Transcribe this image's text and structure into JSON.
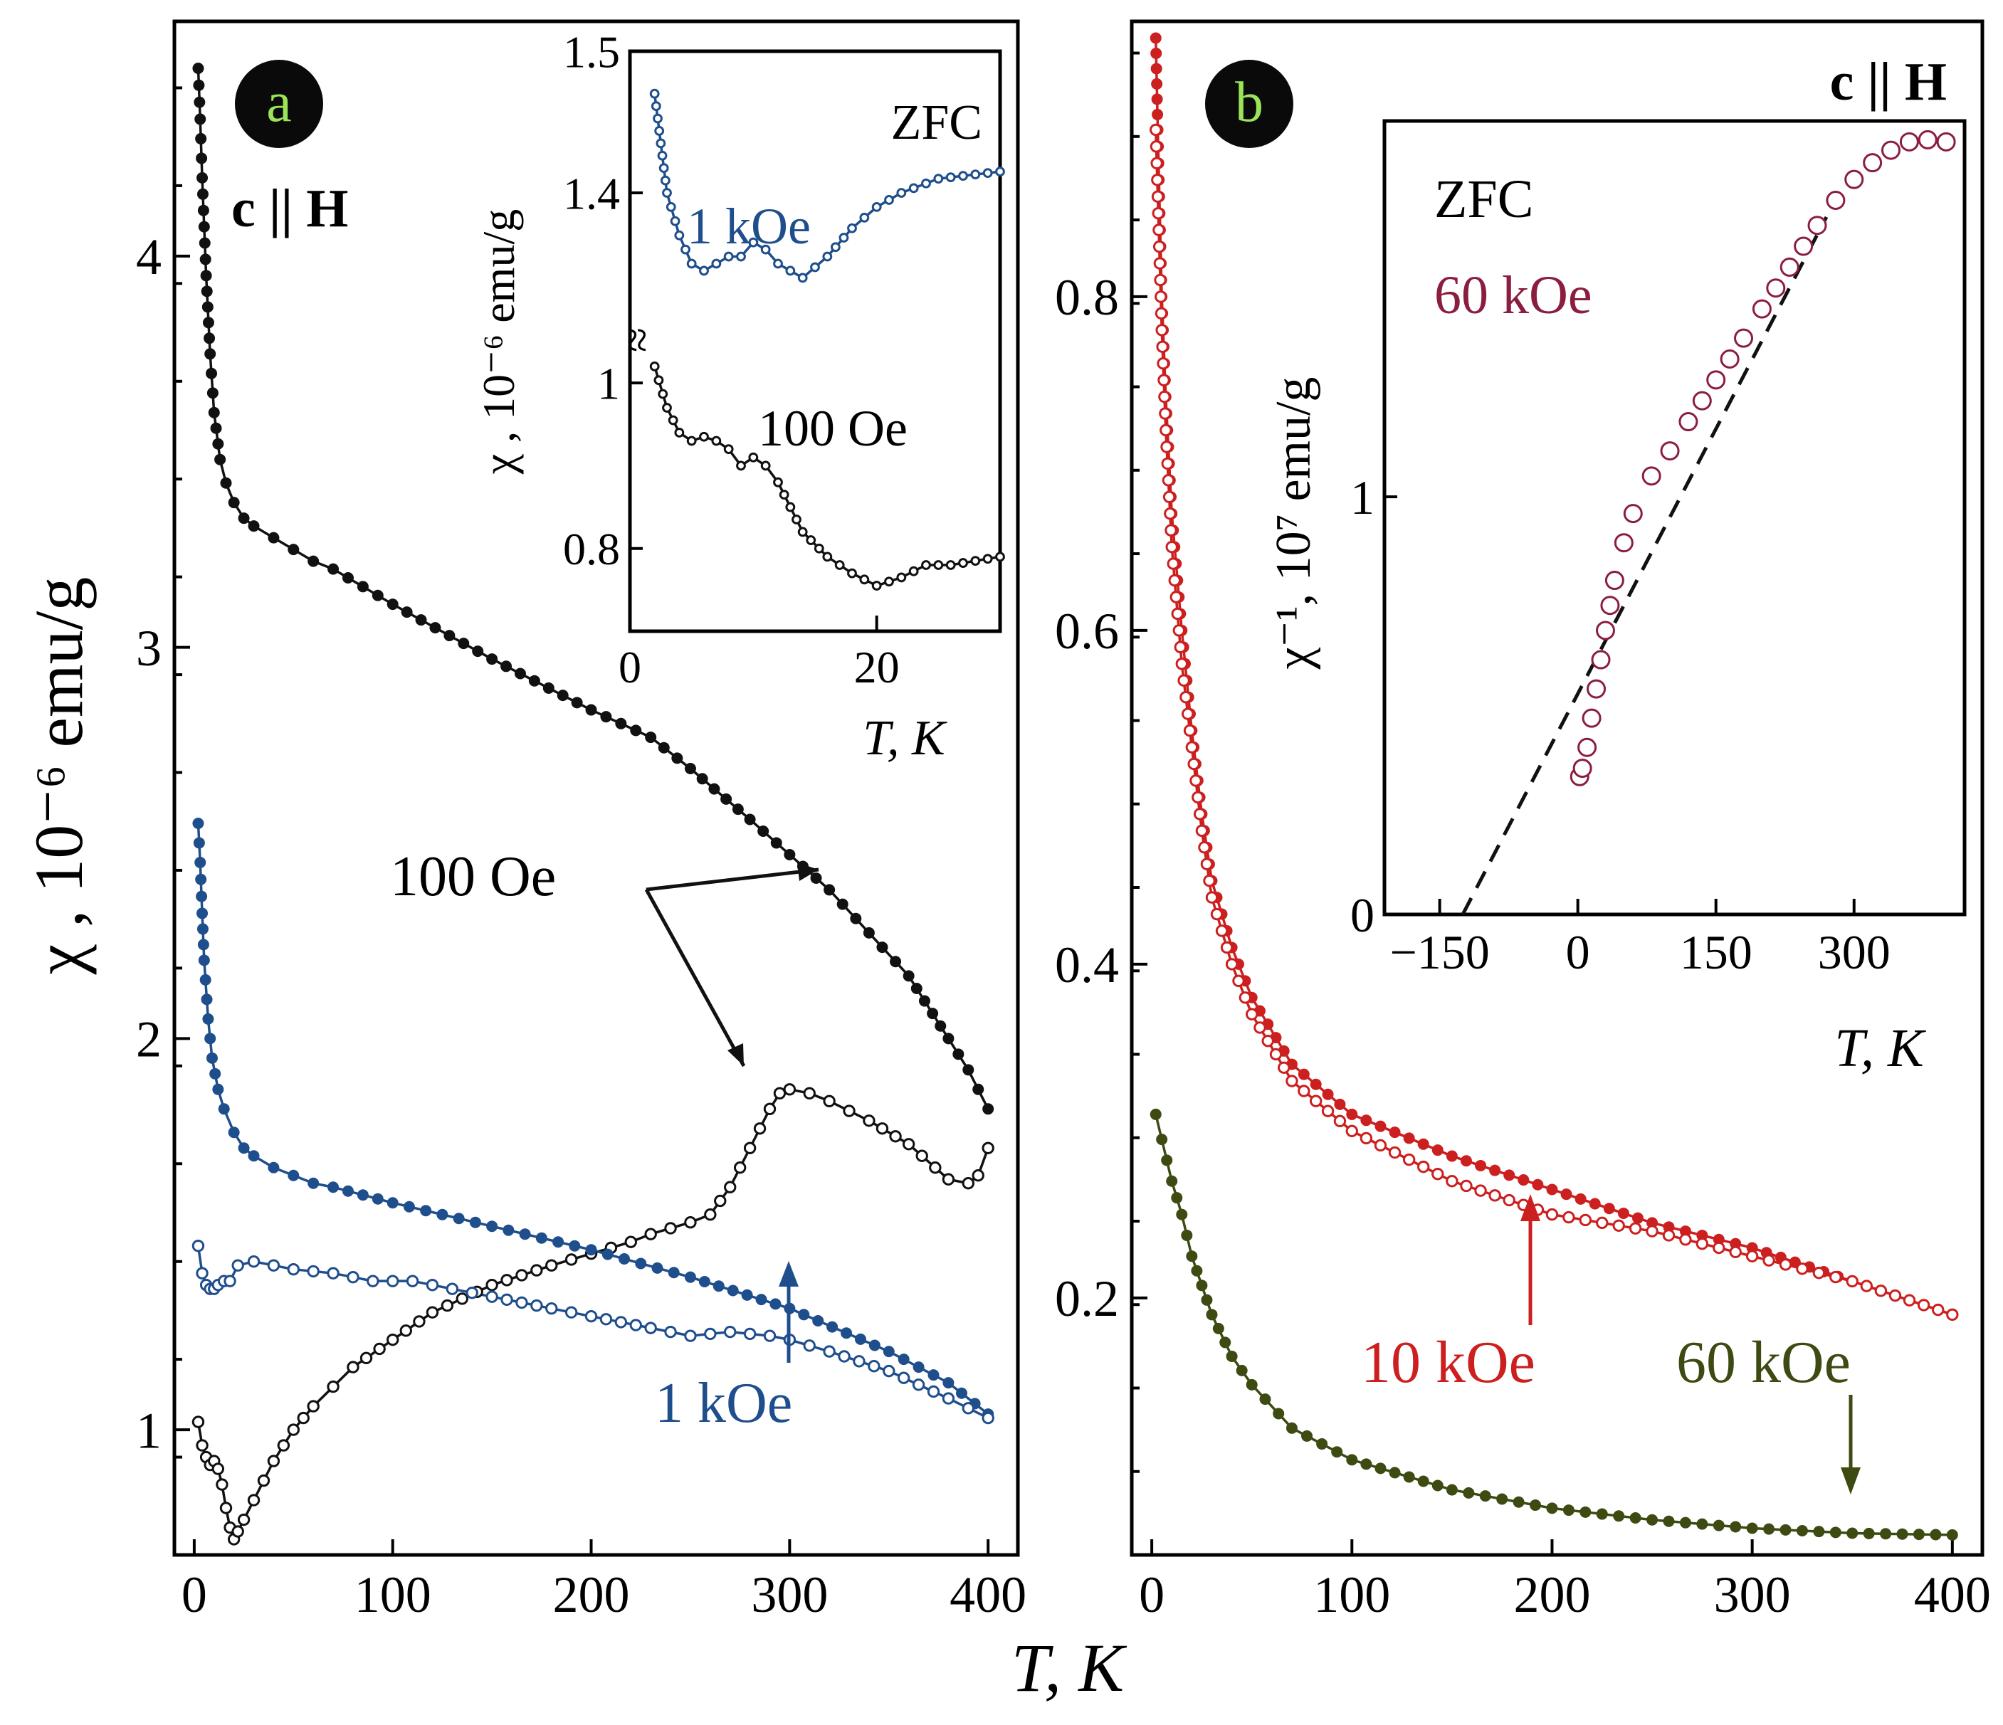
{
  "axis_labels": {
    "shared_x": "T, K",
    "main_a_y": "χ , 10⁻⁶ emu/g",
    "inset_a_x": "T, K",
    "inset_a_y": "χ , 10⁻⁶ emu/g",
    "inset_b_x": "T, K",
    "inset_b_y": "χ⁻¹, 10⁷ emu/g"
  },
  "badges": {
    "a": "a",
    "b": "b"
  },
  "panel_a": {
    "orientation_label": "c || H",
    "annotations": {
      "oe100": "100 Oe",
      "koe1": "1 kOe"
    },
    "inset": {
      "mode": "ZFC",
      "label_1koe": "1 kOe",
      "label_100oe": "100 Oe",
      "break_mark": "≈"
    }
  },
  "panel_b": {
    "orientation_label": "c || H",
    "annotations": {
      "koe10": "10 kOe",
      "koe60": "60 kOe"
    },
    "inset": {
      "mode": "ZFC",
      "field": "60 kOe"
    }
  },
  "colors": {
    "black": "#111111",
    "blue": "#1f4e8c",
    "red": "#cc1f1f",
    "olive": "#3d4a12",
    "maroon": "#8b1e3f",
    "badge_fill": "#0a0a0a",
    "badge_text": "#9be35a"
  },
  "chart_data": [
    {
      "id": "panel_a",
      "type": "line",
      "title": "",
      "xlabel": "T, K",
      "ylabel": "χ , 10⁻⁶ emu/g",
      "xlim": [
        -10,
        415
      ],
      "ylim": [
        0.68,
        4.6
      ],
      "xticks": [
        0,
        100,
        200,
        300,
        400
      ],
      "yticks": [
        1,
        2,
        3,
        4
      ],
      "series": [
        {
          "name": "100 Oe (filled)",
          "color_key": "black",
          "marker": "filled",
          "x": [
            2,
            3,
            4,
            6,
            8,
            10,
            13,
            16,
            20,
            25,
            30,
            40,
            50,
            60,
            70,
            100,
            150,
            200,
            230,
            250,
            280,
            300,
            320,
            340,
            360,
            380,
            390,
            400
          ],
          "y": [
            4.48,
            4.35,
            4.2,
            3.95,
            3.75,
            3.6,
            3.48,
            3.42,
            3.37,
            3.33,
            3.31,
            3.28,
            3.25,
            3.22,
            3.2,
            3.11,
            2.97,
            2.84,
            2.77,
            2.69,
            2.56,
            2.47,
            2.38,
            2.27,
            2.16,
            2.0,
            1.92,
            1.82
          ]
        },
        {
          "name": "100 Oe (open)",
          "color_key": "black",
          "marker": "open",
          "x": [
            2,
            4,
            6,
            8,
            10,
            12,
            14,
            16,
            18,
            20,
            22,
            25,
            30,
            40,
            50,
            60,
            70,
            80,
            100,
            120,
            150,
            180,
            200,
            220,
            230,
            250,
            260,
            270,
            280,
            290,
            295,
            300,
            310,
            320,
            340,
            360,
            380,
            390,
            395,
            400
          ],
          "y": [
            1.02,
            0.96,
            0.93,
            0.91,
            0.92,
            0.9,
            0.86,
            0.8,
            0.75,
            0.72,
            0.74,
            0.77,
            0.82,
            0.92,
            1.0,
            1.06,
            1.11,
            1.16,
            1.23,
            1.3,
            1.37,
            1.42,
            1.45,
            1.48,
            1.5,
            1.53,
            1.55,
            1.62,
            1.72,
            1.82,
            1.86,
            1.87,
            1.86,
            1.84,
            1.79,
            1.73,
            1.64,
            1.63,
            1.65,
            1.72
          ]
        },
        {
          "name": "1 kOe (filled)",
          "color_key": "blue",
          "marker": "filled",
          "x": [
            2,
            3,
            4,
            5,
            7,
            9,
            12,
            15,
            20,
            25,
            30,
            40,
            50,
            60,
            70,
            100,
            150,
            200,
            250,
            300,
            350,
            380,
            400
          ],
          "y": [
            2.55,
            2.45,
            2.32,
            2.2,
            2.05,
            1.95,
            1.87,
            1.82,
            1.76,
            1.72,
            1.7,
            1.67,
            1.65,
            1.63,
            1.62,
            1.58,
            1.52,
            1.46,
            1.39,
            1.31,
            1.2,
            1.12,
            1.04
          ]
        },
        {
          "name": "1 kOe (open)",
          "color_key": "blue",
          "marker": "open",
          "x": [
            2,
            4,
            6,
            8,
            10,
            12,
            15,
            18,
            22,
            30,
            40,
            50,
            70,
            90,
            110,
            130,
            150,
            180,
            200,
            230,
            250,
            270,
            290,
            300,
            320,
            350,
            380,
            400
          ],
          "y": [
            1.47,
            1.4,
            1.37,
            1.36,
            1.36,
            1.37,
            1.38,
            1.38,
            1.42,
            1.43,
            1.42,
            1.41,
            1.4,
            1.38,
            1.38,
            1.36,
            1.34,
            1.31,
            1.29,
            1.26,
            1.24,
            1.25,
            1.24,
            1.23,
            1.2,
            1.15,
            1.08,
            1.03
          ]
        }
      ]
    },
    {
      "id": "panel_a_inset",
      "type": "line",
      "xlabel": "T, K",
      "ylabel": "χ , 10⁻⁶ emu/g",
      "xlim": [
        0,
        30
      ],
      "ylim": [
        0.7,
        1.5
      ],
      "xticks": [
        0,
        20
      ],
      "ytick_labels": [
        "0.8",
        "1",
        "1.4",
        "1.5"
      ],
      "axis_break": true,
      "series": [
        {
          "name": "1 kOe",
          "color_key": "blue",
          "marker": "open",
          "x": [
            2,
            3,
            4,
            5,
            6,
            7,
            8,
            9,
            10,
            11,
            12,
            13,
            14,
            16,
            18,
            20,
            22,
            25,
            30
          ],
          "y": [
            1.47,
            1.4,
            1.37,
            1.35,
            1.345,
            1.35,
            1.355,
            1.355,
            1.365,
            1.36,
            1.35,
            1.345,
            1.34,
            1.355,
            1.375,
            1.39,
            1.4,
            1.41,
            1.415
          ]
        },
        {
          "name": "100 Oe",
          "color_key": "black",
          "marker": "open",
          "x": [
            2,
            3,
            4,
            5,
            6,
            7,
            8,
            9,
            10,
            11,
            12,
            13,
            14,
            16,
            18,
            20,
            21,
            22,
            24,
            26,
            28,
            30
          ],
          "y": [
            1.02,
            0.97,
            0.94,
            0.93,
            0.935,
            0.93,
            0.92,
            0.9,
            0.91,
            0.9,
            0.88,
            0.85,
            0.82,
            0.79,
            0.77,
            0.755,
            0.76,
            0.765,
            0.78,
            0.78,
            0.785,
            0.79
          ]
        }
      ]
    },
    {
      "id": "panel_b",
      "type": "line",
      "xlabel": "T, K",
      "ylabel": "",
      "xlim": [
        -10,
        415
      ],
      "ylim": [
        0.046,
        0.965
      ],
      "xticks": [
        0,
        100,
        200,
        300,
        400
      ],
      "yticks": [
        0.2,
        0.4,
        0.6,
        0.8
      ],
      "series": [
        {
          "name": "10 kOe (filled)",
          "color_key": "red",
          "marker": "filled",
          "x": [
            2,
            3,
            4,
            5,
            7,
            10,
            15,
            20,
            25,
            30,
            40,
            50,
            70,
            100,
            150,
            200,
            250,
            300,
            350,
            400
          ],
          "y": [
            0.955,
            0.9,
            0.85,
            0.8,
            0.74,
            0.67,
            0.6,
            0.54,
            0.49,
            0.45,
            0.41,
            0.38,
            0.34,
            0.31,
            0.285,
            0.265,
            0.245,
            0.23,
            0.21,
            0.19
          ]
        },
        {
          "name": "10 kOe (open)",
          "color_key": "red",
          "marker": "open",
          "x": [
            2,
            3,
            4,
            5,
            7,
            10,
            15,
            20,
            25,
            30,
            40,
            50,
            70,
            100,
            150,
            200,
            250,
            300,
            350,
            400
          ],
          "y": [
            0.9,
            0.86,
            0.82,
            0.78,
            0.72,
            0.65,
            0.58,
            0.53,
            0.48,
            0.44,
            0.4,
            0.37,
            0.33,
            0.3,
            0.27,
            0.25,
            0.24,
            0.225,
            0.21,
            0.19
          ]
        },
        {
          "name": "60 kOe",
          "color_key": "olive",
          "marker": "filled",
          "x": [
            2,
            5,
            10,
            15,
            20,
            30,
            40,
            50,
            70,
            100,
            150,
            200,
            250,
            300,
            350,
            400
          ],
          "y": [
            0.31,
            0.295,
            0.27,
            0.25,
            0.225,
            0.19,
            0.165,
            0.148,
            0.122,
            0.103,
            0.085,
            0.074,
            0.067,
            0.062,
            0.059,
            0.058
          ]
        }
      ]
    },
    {
      "id": "panel_b_inset",
      "type": "scatter",
      "xlabel": "T, K",
      "ylabel": "χ⁻¹, 10⁷ emu/g",
      "xlim": [
        -210,
        420
      ],
      "ylim": [
        0,
        1.9
      ],
      "xticks": [
        -150,
        0,
        150,
        300
      ],
      "ytick_labels": [
        "0",
        "1"
      ],
      "series": [
        {
          "name": "60 kOe",
          "color_key": "maroon",
          "marker": "open-circle",
          "x": [
            2,
            5,
            10,
            15,
            20,
            30,
            40,
            50,
            60,
            80,
            100,
            120,
            150,
            180,
            200,
            230,
            260,
            280,
            300,
            320,
            340,
            360,
            380,
            400
          ],
          "y": [
            0.33,
            0.35,
            0.4,
            0.47,
            0.54,
            0.68,
            0.8,
            0.89,
            0.96,
            1.05,
            1.11,
            1.18,
            1.28,
            1.38,
            1.45,
            1.55,
            1.65,
            1.71,
            1.76,
            1.8,
            1.83,
            1.85,
            1.855,
            1.85
          ]
        },
        {
          "name": "Curie-Weiss fit",
          "color_key": "black",
          "style": "dashed",
          "x": [
            -125,
            270
          ],
          "y": [
            0,
            1.67
          ]
        }
      ]
    }
  ]
}
